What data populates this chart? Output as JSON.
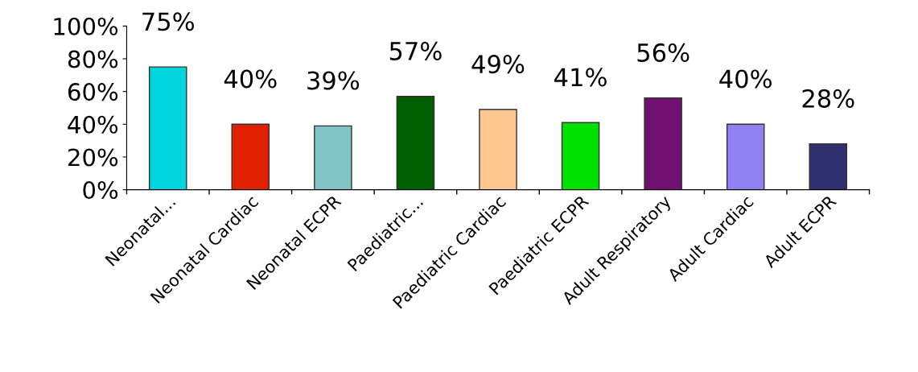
{
  "chart_data": {
    "type": "bar",
    "categories": [
      "Neonatal...",
      "Neonatal Cardiac",
      "Neonatal ECPR",
      "Paediatric...",
      "Paediatric Cardiac",
      "Paediatric ECPR",
      "Adult Respiratory",
      "Adult Cardiac",
      "Adult ECPR"
    ],
    "values": [
      75,
      40,
      39,
      57,
      49,
      41,
      56,
      40,
      28
    ],
    "value_labels": [
      "75%",
      "40%",
      "39%",
      "57%",
      "49%",
      "41%",
      "56%",
      "40%",
      "28%"
    ],
    "colors": [
      "#00d4dc",
      "#e02000",
      "#80c4c8",
      "#006000",
      "#ffc890",
      "#00e000",
      "#701070",
      "#9080f0",
      "#303070"
    ],
    "ylim": [
      0,
      100
    ],
    "yticks": [
      {
        "value": 0,
        "label": "0%"
      },
      {
        "value": 20,
        "label": "20%"
      },
      {
        "value": 40,
        "label": "40%"
      },
      {
        "value": 60,
        "label": "60%"
      },
      {
        "value": 80,
        "label": "80%"
      },
      {
        "value": 100,
        "label": "100%"
      }
    ],
    "grid": false,
    "legend": false
  }
}
